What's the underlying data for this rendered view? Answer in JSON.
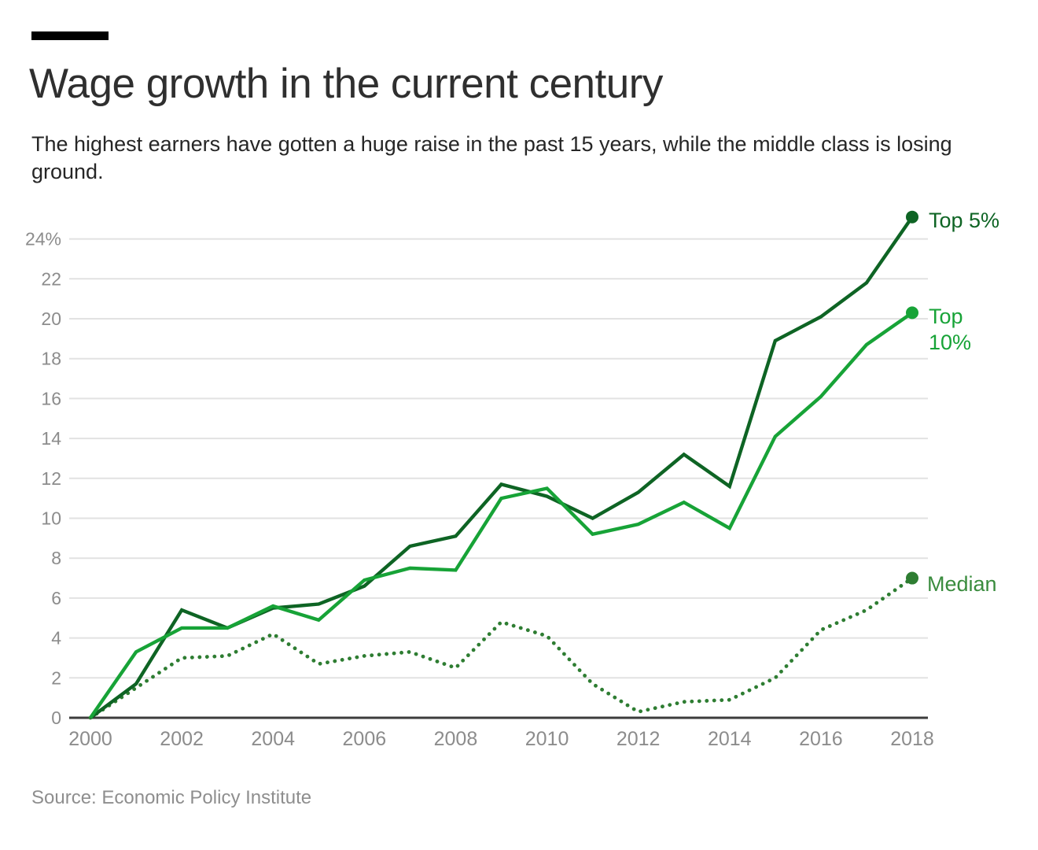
{
  "header": {
    "title": "Wage growth in the current century",
    "subtitle": "The highest earners have gotten a huge raise in the past 15 years, while the middle class is losing ground."
  },
  "footer": {
    "source": "Source: Economic Policy Institute"
  },
  "colors": {
    "brand_bar": "#000000",
    "title_text": "#2f2f2f",
    "subtitle_text": "#262626",
    "grid_line": "#e2e2e2",
    "axis_line": "#3c3c3c",
    "tick_text": "#8c8c8c",
    "source_text": "#8e8e8e",
    "top5_green": "#0e6424",
    "top10_green": "#17a337",
    "median_green": "#2e7d32"
  },
  "chart_data": {
    "type": "line",
    "title": "Wage growth in the current century",
    "xlabel": "",
    "ylabel": "",
    "x": [
      2000,
      2001,
      2002,
      2003,
      2004,
      2005,
      2006,
      2007,
      2008,
      2009,
      2010,
      2011,
      2012,
      2013,
      2014,
      2015,
      2016,
      2017,
      2018
    ],
    "series": [
      {
        "name": "Top 5%",
        "label": "Top 5%",
        "color": "#0e6424",
        "label_color": "#0e6424",
        "style": "solid",
        "end_dot": true,
        "values": [
          0,
          1.7,
          5.4,
          4.5,
          5.5,
          5.7,
          6.6,
          8.6,
          9.1,
          11.7,
          11.1,
          10.0,
          11.3,
          13.2,
          11.6,
          18.9,
          20.1,
          21.8,
          25.1
        ]
      },
      {
        "name": "Top 10%",
        "label": "Top 10%",
        "color": "#17a337",
        "label_color": "#17a337",
        "style": "solid",
        "end_dot": true,
        "values": [
          0,
          3.3,
          4.5,
          4.5,
          5.6,
          4.9,
          6.9,
          7.5,
          7.4,
          11.0,
          11.5,
          9.2,
          9.7,
          10.8,
          9.5,
          14.1,
          16.1,
          18.7,
          20.3
        ]
      },
      {
        "name": "Median",
        "label": "Median",
        "color": "#2e7d32",
        "label_color": "#3a8c3e",
        "style": "dotted",
        "end_dot": true,
        "values": [
          0,
          1.5,
          3.0,
          3.1,
          4.2,
          2.7,
          3.1,
          3.3,
          2.5,
          4.8,
          4.1,
          1.7,
          0.3,
          0.8,
          0.9,
          2.0,
          4.4,
          5.4,
          7.0
        ]
      }
    ],
    "ylim": [
      0,
      25.5
    ],
    "yticks": [
      0,
      2,
      4,
      6,
      8,
      10,
      12,
      14,
      16,
      18,
      20,
      22,
      24
    ],
    "ytick_top_label": "24%",
    "xticks": [
      2000,
      2002,
      2004,
      2006,
      2008,
      2010,
      2012,
      2014,
      2016,
      2018
    ],
    "grid": true,
    "legend_position": "right-of-line-ends",
    "unit": "percent"
  }
}
